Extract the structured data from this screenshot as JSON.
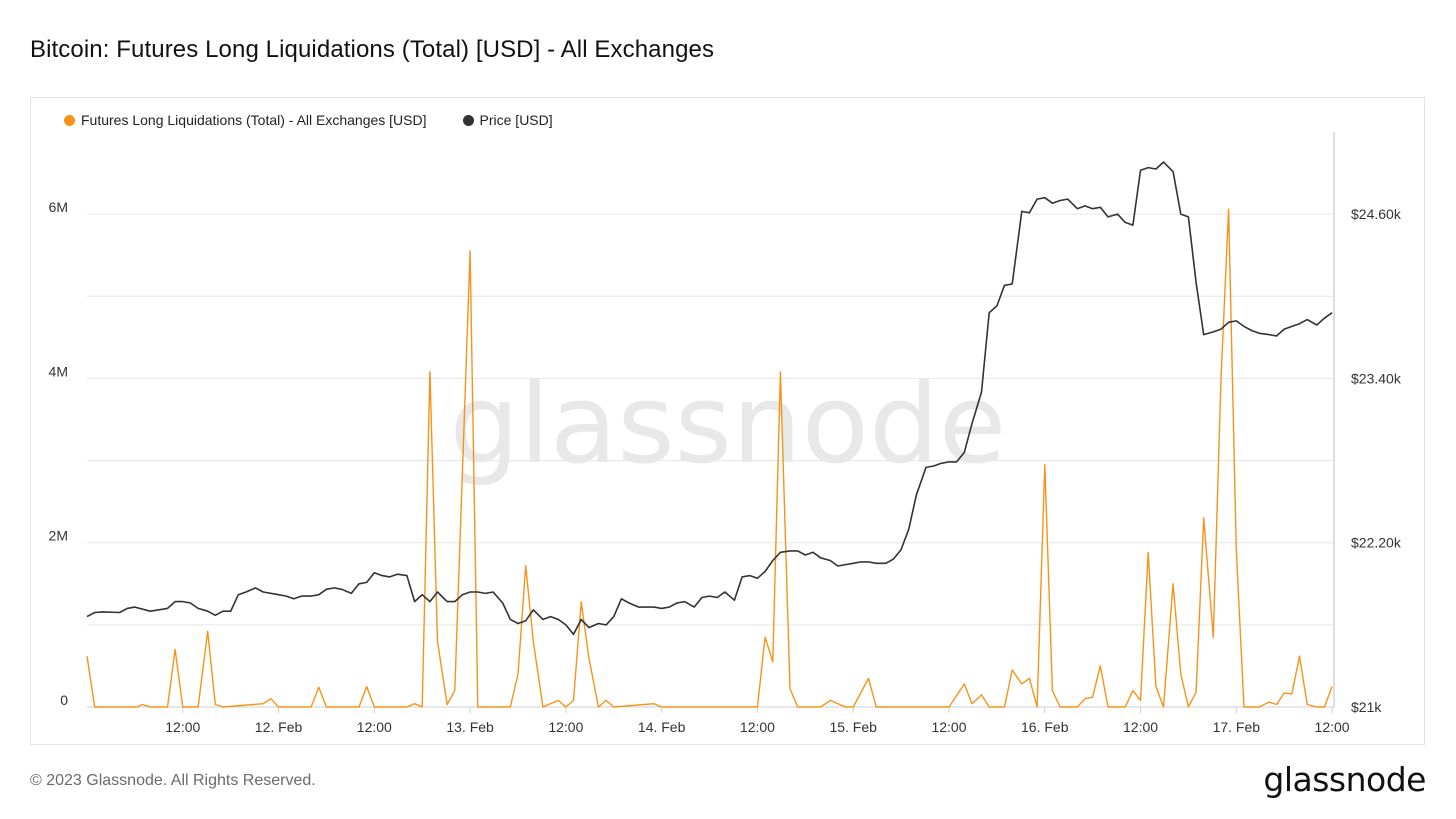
{
  "title": "Bitcoin: Futures Long Liquidations (Total) [USD] - All Exchanges",
  "watermark": "glassnode",
  "footer": {
    "copyright": "© 2023 Glassnode. All Rights Reserved.",
    "logo": "glassnode"
  },
  "legend": [
    {
      "label": "Futures Long Liquidations (Total) - All Exchanges [USD]",
      "color": "#f7931a"
    },
    {
      "label": "Price [USD]",
      "color": "#333333"
    }
  ],
  "chart_data": {
    "type": "line",
    "x_axis": {
      "range_days": [
        0,
        6.51
      ],
      "ticks": [
        {
          "label": "12:00",
          "day": 0.5
        },
        {
          "label": "12. Feb",
          "day": 1.0
        },
        {
          "label": "12:00",
          "day": 1.5
        },
        {
          "label": "13. Feb",
          "day": 2.0
        },
        {
          "label": "12:00",
          "day": 2.5
        },
        {
          "label": "14. Feb",
          "day": 3.0
        },
        {
          "label": "12:00",
          "day": 3.5
        },
        {
          "label": "15. Feb",
          "day": 4.0
        },
        {
          "label": "12:00",
          "day": 4.5
        },
        {
          "label": "16. Feb",
          "day": 5.0
        },
        {
          "label": "12:00",
          "day": 5.5
        },
        {
          "label": "17. Feb",
          "day": 6.0
        },
        {
          "label": "12:00",
          "day": 6.5
        }
      ]
    },
    "y_left": {
      "range": [
        0,
        7000000
      ],
      "ticks": [
        {
          "label": "0",
          "value": 0
        },
        {
          "label": "2M",
          "value": 2000000
        },
        {
          "label": "4M",
          "value": 4000000
        },
        {
          "label": "6M",
          "value": 6000000
        }
      ]
    },
    "y_right": {
      "range": [
        21000,
        25200
      ],
      "ticks": [
        {
          "label": "$21k",
          "value": 21000
        },
        {
          "label": "$22.20k",
          "value": 22200
        },
        {
          "label": "$23.40k",
          "value": 23400
        },
        {
          "label": "$24.60k",
          "value": 24600
        }
      ]
    },
    "grid": true,
    "legend_position": "top-left",
    "series": [
      {
        "name": "Futures Long Liquidations (Total) - All Exchanges [USD]",
        "axis": "left",
        "color": "#f7931a",
        "points": [
          [
            0.0,
            620000
          ],
          [
            0.04,
            0
          ],
          [
            0.26,
            0
          ],
          [
            0.29,
            30000
          ],
          [
            0.33,
            0
          ],
          [
            0.42,
            0
          ],
          [
            0.46,
            700000
          ],
          [
            0.5,
            0
          ],
          [
            0.58,
            0
          ],
          [
            0.63,
            920000
          ],
          [
            0.67,
            30000
          ],
          [
            0.71,
            0
          ],
          [
            0.92,
            40000
          ],
          [
            0.96,
            100000
          ],
          [
            1.0,
            0
          ],
          [
            1.17,
            0
          ],
          [
            1.21,
            240000
          ],
          [
            1.25,
            0
          ],
          [
            1.42,
            0
          ],
          [
            1.46,
            250000
          ],
          [
            1.5,
            0
          ],
          [
            1.67,
            0
          ],
          [
            1.71,
            40000
          ],
          [
            1.75,
            0
          ],
          [
            1.79,
            4080000
          ],
          [
            1.83,
            800000
          ],
          [
            1.88,
            30000
          ],
          [
            1.92,
            200000
          ],
          [
            2.0,
            5550000
          ],
          [
            2.04,
            0
          ],
          [
            2.21,
            0
          ],
          [
            2.25,
            400000
          ],
          [
            2.29,
            1720000
          ],
          [
            2.33,
            800000
          ],
          [
            2.38,
            0
          ],
          [
            2.46,
            80000
          ],
          [
            2.5,
            0
          ],
          [
            2.54,
            80000
          ],
          [
            2.58,
            1280000
          ],
          [
            2.62,
            600000
          ],
          [
            2.67,
            0
          ],
          [
            2.71,
            80000
          ],
          [
            2.75,
            0
          ],
          [
            2.96,
            40000
          ],
          [
            3.0,
            0
          ],
          [
            3.42,
            0
          ],
          [
            3.5,
            0
          ],
          [
            3.54,
            850000
          ],
          [
            3.58,
            550000
          ],
          [
            3.62,
            4080000
          ],
          [
            3.67,
            220000
          ],
          [
            3.71,
            0
          ],
          [
            3.83,
            0
          ],
          [
            3.88,
            80000
          ],
          [
            3.96,
            0
          ],
          [
            4.0,
            0
          ],
          [
            4.08,
            350000
          ],
          [
            4.12,
            0
          ],
          [
            4.5,
            0
          ],
          [
            4.58,
            280000
          ],
          [
            4.62,
            40000
          ],
          [
            4.67,
            150000
          ],
          [
            4.71,
            0
          ],
          [
            4.79,
            0
          ],
          [
            4.83,
            450000
          ],
          [
            4.88,
            280000
          ],
          [
            4.92,
            350000
          ],
          [
            4.96,
            0
          ],
          [
            5.0,
            2950000
          ],
          [
            5.04,
            200000
          ],
          [
            5.08,
            0
          ],
          [
            5.17,
            0
          ],
          [
            5.21,
            100000
          ],
          [
            5.25,
            120000
          ],
          [
            5.29,
            500000
          ],
          [
            5.33,
            0
          ],
          [
            5.42,
            0
          ],
          [
            5.46,
            200000
          ],
          [
            5.5,
            80000
          ],
          [
            5.54,
            1880000
          ],
          [
            5.58,
            250000
          ],
          [
            5.62,
            0
          ],
          [
            5.67,
            1500000
          ],
          [
            5.71,
            400000
          ],
          [
            5.75,
            0
          ],
          [
            5.79,
            180000
          ],
          [
            5.83,
            2300000
          ],
          [
            5.88,
            850000
          ],
          [
            5.92,
            4000000
          ],
          [
            5.96,
            6060000
          ],
          [
            6.0,
            1900000
          ],
          [
            6.04,
            0
          ],
          [
            6.12,
            0
          ],
          [
            6.17,
            60000
          ],
          [
            6.21,
            30000
          ],
          [
            6.25,
            170000
          ],
          [
            6.29,
            160000
          ],
          [
            6.33,
            620000
          ],
          [
            6.37,
            30000
          ],
          [
            6.42,
            0
          ],
          [
            6.46,
            0
          ],
          [
            6.5,
            250000
          ]
        ]
      },
      {
        "name": "Price [USD]",
        "axis": "right",
        "color": "#333333",
        "points": [
          [
            0.0,
            21660
          ],
          [
            0.04,
            21690
          ],
          [
            0.08,
            21695
          ],
          [
            0.17,
            21690
          ],
          [
            0.21,
            21720
          ],
          [
            0.25,
            21730
          ],
          [
            0.33,
            21700
          ],
          [
            0.42,
            21720
          ],
          [
            0.46,
            21770
          ],
          [
            0.5,
            21770
          ],
          [
            0.54,
            21760
          ],
          [
            0.58,
            21720
          ],
          [
            0.63,
            21700
          ],
          [
            0.67,
            21670
          ],
          [
            0.71,
            21700
          ],
          [
            0.75,
            21700
          ],
          [
            0.79,
            21820
          ],
          [
            0.83,
            21840
          ],
          [
            0.88,
            21870
          ],
          [
            0.92,
            21840
          ],
          [
            1.0,
            21820
          ],
          [
            1.04,
            21810
          ],
          [
            1.08,
            21790
          ],
          [
            1.12,
            21810
          ],
          [
            1.17,
            21810
          ],
          [
            1.21,
            21820
          ],
          [
            1.25,
            21860
          ],
          [
            1.29,
            21870
          ],
          [
            1.33,
            21860
          ],
          [
            1.38,
            21830
          ],
          [
            1.42,
            21900
          ],
          [
            1.46,
            21910
          ],
          [
            1.5,
            21980
          ],
          [
            1.54,
            21960
          ],
          [
            1.58,
            21950
          ],
          [
            1.62,
            21970
          ],
          [
            1.67,
            21960
          ],
          [
            1.71,
            21770
          ],
          [
            1.75,
            21820
          ],
          [
            1.79,
            21770
          ],
          [
            1.83,
            21840
          ],
          [
            1.88,
            21770
          ],
          [
            1.92,
            21770
          ],
          [
            1.96,
            21820
          ],
          [
            2.0,
            21840
          ],
          [
            2.04,
            21840
          ],
          [
            2.08,
            21830
          ],
          [
            2.12,
            21840
          ],
          [
            2.17,
            21760
          ],
          [
            2.21,
            21640
          ],
          [
            2.25,
            21610
          ],
          [
            2.29,
            21630
          ],
          [
            2.33,
            21710
          ],
          [
            2.38,
            21640
          ],
          [
            2.42,
            21660
          ],
          [
            2.46,
            21640
          ],
          [
            2.5,
            21600
          ],
          [
            2.54,
            21530
          ],
          [
            2.58,
            21640
          ],
          [
            2.62,
            21580
          ],
          [
            2.67,
            21610
          ],
          [
            2.71,
            21600
          ],
          [
            2.75,
            21660
          ],
          [
            2.79,
            21790
          ],
          [
            2.83,
            21760
          ],
          [
            2.88,
            21730
          ],
          [
            2.96,
            21730
          ],
          [
            3.0,
            21720
          ],
          [
            3.04,
            21730
          ],
          [
            3.08,
            21760
          ],
          [
            3.12,
            21770
          ],
          [
            3.17,
            21730
          ],
          [
            3.21,
            21800
          ],
          [
            3.25,
            21810
          ],
          [
            3.29,
            21800
          ],
          [
            3.33,
            21840
          ],
          [
            3.38,
            21780
          ],
          [
            3.42,
            21950
          ],
          [
            3.46,
            21960
          ],
          [
            3.5,
            21940
          ],
          [
            3.54,
            21990
          ],
          [
            3.58,
            22070
          ],
          [
            3.62,
            22130
          ],
          [
            3.67,
            22140
          ],
          [
            3.71,
            22140
          ],
          [
            3.75,
            22110
          ],
          [
            3.79,
            22130
          ],
          [
            3.83,
            22090
          ],
          [
            3.88,
            22070
          ],
          [
            3.92,
            22030
          ],
          [
            3.96,
            22040
          ],
          [
            4.0,
            22050
          ],
          [
            4.04,
            22060
          ],
          [
            4.08,
            22060
          ],
          [
            4.12,
            22050
          ],
          [
            4.17,
            22050
          ],
          [
            4.21,
            22080
          ],
          [
            4.25,
            22150
          ],
          [
            4.29,
            22300
          ],
          [
            4.33,
            22550
          ],
          [
            4.38,
            22750
          ],
          [
            4.42,
            22760
          ],
          [
            4.46,
            22780
          ],
          [
            4.5,
            22790
          ],
          [
            4.54,
            22790
          ],
          [
            4.58,
            22860
          ],
          [
            4.62,
            23070
          ],
          [
            4.67,
            23300
          ],
          [
            4.71,
            23880
          ],
          [
            4.75,
            23930
          ],
          [
            4.79,
            24080
          ],
          [
            4.83,
            24090
          ],
          [
            4.88,
            24620
          ],
          [
            4.92,
            24610
          ],
          [
            4.96,
            24710
          ],
          [
            5.0,
            24720
          ],
          [
            5.04,
            24680
          ],
          [
            5.08,
            24700
          ],
          [
            5.12,
            24710
          ],
          [
            5.17,
            24640
          ],
          [
            5.21,
            24660
          ],
          [
            5.25,
            24640
          ],
          [
            5.29,
            24650
          ],
          [
            5.33,
            24580
          ],
          [
            5.38,
            24600
          ],
          [
            5.42,
            24540
          ],
          [
            5.46,
            24520
          ],
          [
            5.5,
            24920
          ],
          [
            5.54,
            24940
          ],
          [
            5.58,
            24930
          ],
          [
            5.62,
            24980
          ],
          [
            5.67,
            24910
          ],
          [
            5.71,
            24600
          ],
          [
            5.75,
            24580
          ],
          [
            5.79,
            24100
          ],
          [
            5.83,
            23720
          ],
          [
            5.88,
            23740
          ],
          [
            5.92,
            23760
          ],
          [
            5.96,
            23810
          ],
          [
            6.0,
            23820
          ],
          [
            6.04,
            23780
          ],
          [
            6.08,
            23750
          ],
          [
            6.12,
            23730
          ],
          [
            6.17,
            23720
          ],
          [
            6.21,
            23710
          ],
          [
            6.25,
            23760
          ],
          [
            6.29,
            23780
          ],
          [
            6.33,
            23800
          ],
          [
            6.37,
            23830
          ],
          [
            6.42,
            23790
          ],
          [
            6.46,
            23840
          ],
          [
            6.5,
            23880
          ]
        ]
      }
    ]
  }
}
